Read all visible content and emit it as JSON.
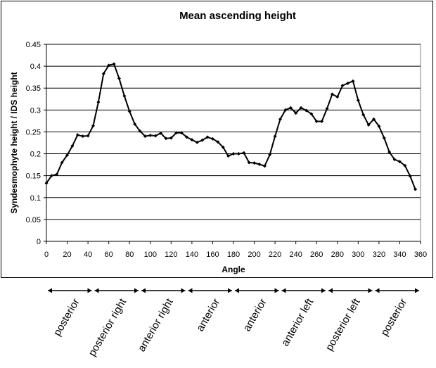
{
  "chart_data": {
    "type": "line",
    "title": "Mean ascending height",
    "xlabel": "Angle",
    "ylabel": "Syndesmophyte height / IDS height",
    "xlim": [
      0,
      360
    ],
    "ylim": [
      0,
      0.45
    ],
    "x_ticks": [
      0,
      20,
      40,
      60,
      80,
      100,
      120,
      140,
      160,
      180,
      200,
      220,
      240,
      260,
      280,
      300,
      320,
      340,
      360
    ],
    "y_ticks": [
      "0",
      "0.05",
      "0.1",
      "0.15",
      "0.2",
      "0.25",
      "0.3",
      "0.35",
      "0.4",
      "0.45"
    ],
    "grid": "horizontal",
    "legend": "none",
    "line_color": "#000000",
    "series": [
      {
        "x": [
          0,
          5,
          10,
          15,
          20,
          25,
          30,
          35,
          40,
          45,
          50,
          55,
          60,
          65,
          70,
          75,
          80,
          85,
          90,
          95,
          100,
          105,
          110,
          115,
          120,
          125,
          130,
          135,
          140,
          145,
          150,
          155,
          160,
          165,
          170,
          175,
          180,
          185,
          190,
          195,
          200,
          205,
          210,
          215,
          220,
          225,
          230,
          235,
          240,
          245,
          250,
          255,
          260,
          265,
          270,
          275,
          280,
          285,
          290,
          295,
          300,
          305,
          310,
          315,
          320,
          325,
          330,
          335,
          340,
          345,
          350,
          355
        ],
        "y": [
          0.133,
          0.15,
          0.153,
          0.18,
          0.197,
          0.218,
          0.243,
          0.24,
          0.241,
          0.264,
          0.318,
          0.383,
          0.402,
          0.405,
          0.372,
          0.332,
          0.297,
          0.268,
          0.252,
          0.24,
          0.242,
          0.241,
          0.247,
          0.235,
          0.236,
          0.248,
          0.248,
          0.238,
          0.232,
          0.226,
          0.231,
          0.238,
          0.234,
          0.227,
          0.215,
          0.195,
          0.2,
          0.2,
          0.202,
          0.18,
          0.179,
          0.176,
          0.172,
          0.198,
          0.24,
          0.279,
          0.3,
          0.305,
          0.293,
          0.305,
          0.299,
          0.291,
          0.274,
          0.274,
          0.303,
          0.336,
          0.33,
          0.356,
          0.361,
          0.366,
          0.322,
          0.289,
          0.266,
          0.279,
          0.263,
          0.236,
          0.204,
          0.187,
          0.182,
          0.173,
          0.149,
          0.119
        ]
      }
    ]
  },
  "regions": [
    "posterior",
    "posterior right",
    "anterior right",
    "anterior",
    "anterior",
    "anterior left",
    "posterior left",
    "posterior"
  ]
}
